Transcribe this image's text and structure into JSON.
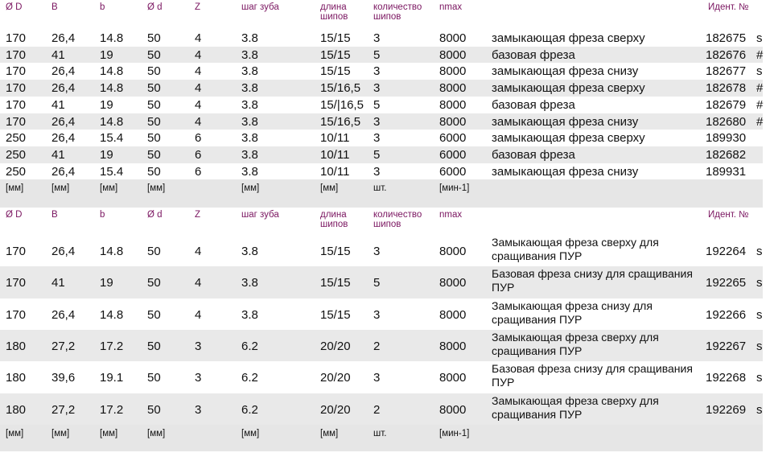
{
  "table1": {
    "headers": {
      "d_outer": "Ø D",
      "B": "B",
      "b": "b",
      "d_bore": "Ø d",
      "Z": "Z",
      "pitch": "шаг зуба",
      "length_l1": "длина",
      "length_l2": "шипов",
      "count_l1": "количество",
      "count_l2": "шипов",
      "nmax": "nmax",
      "ident": "Идент. №"
    },
    "rows": [
      {
        "D": "170",
        "B": "26,4",
        "b": "14.8",
        "d": "50",
        "Z": "4",
        "pitch": "3.8",
        "length": "15/15",
        "count": "3",
        "nmax": "8000",
        "desc": "замыкающая фреза сверху",
        "id": "182675",
        "mark": "s"
      },
      {
        "D": "170",
        "B": "41",
        "b": "19",
        "d": "50",
        "Z": "4",
        "pitch": "3.8",
        "length": "15/15",
        "count": "5",
        "nmax": "8000",
        "desc": "базовая фреза",
        "id": "182676",
        "mark": "#"
      },
      {
        "D": "170",
        "B": "26,4",
        "b": "14.8",
        "d": "50",
        "Z": "4",
        "pitch": "3.8",
        "length": "15/15",
        "count": "3",
        "nmax": "8000",
        "desc": "замыкающая фреза снизу",
        "id": "182677",
        "mark": "s"
      },
      {
        "D": "170",
        "B": "26,4",
        "b": "14.8",
        "d": "50",
        "Z": "4",
        "pitch": "3.8",
        "length": "15/16,5",
        "count": "3",
        "nmax": "8000",
        "desc": "замыкающая фреза сверху",
        "id": "182678",
        "mark": "#"
      },
      {
        "D": "170",
        "B": "41",
        "b": "19",
        "d": "50",
        "Z": "4",
        "pitch": "3.8",
        "length": "15/|16,5",
        "count": "5",
        "nmax": "8000",
        "desc": "базовая фреза",
        "id": "182679",
        "mark": "#"
      },
      {
        "D": "170",
        "B": "26,4",
        "b": "14.8",
        "d": "50",
        "Z": "4",
        "pitch": "3.8",
        "length": "15/16,5",
        "count": "3",
        "nmax": "8000",
        "desc": "замыкающая фреза снизу",
        "id": "182680",
        "mark": "#"
      },
      {
        "D": "250",
        "B": "26,4",
        "b": "15.4",
        "d": "50",
        "Z": "6",
        "pitch": "3.8",
        "length": "10/11",
        "count": "3",
        "nmax": "6000",
        "desc": "замыкающая фреза сверху",
        "id": "189930",
        "mark": ""
      },
      {
        "D": "250",
        "B": "41",
        "b": "19",
        "d": "50",
        "Z": "6",
        "pitch": "3.8",
        "length": "10/11",
        "count": "5",
        "nmax": "6000",
        "desc": "базовая фреза",
        "id": "182682",
        "mark": ""
      },
      {
        "D": "250",
        "B": "26,4",
        "b": "15.4",
        "d": "50",
        "Z": "6",
        "pitch": "3.8",
        "length": "10/11",
        "count": "3",
        "nmax": "6000",
        "desc": "замыкающая фреза снизу",
        "id": "189931",
        "mark": ""
      }
    ],
    "units": {
      "D": "[мм]",
      "B": "[мм]",
      "b": "[мм]",
      "d": "[мм]",
      "pitch": "[мм]",
      "length": "[мм]",
      "count": "шт.",
      "nmax": "[мин-1]"
    }
  },
  "table2": {
    "headers": {
      "d_outer": "Ø D",
      "B": "B",
      "b": "b",
      "d_bore": "Ø d",
      "Z": "Z",
      "pitch": "шаг зуба",
      "length_l1": "длина",
      "length_l2": "шипов",
      "count_l1": "количество",
      "count_l2": "шипов",
      "nmax": "nmax",
      "ident": "Идент. №"
    },
    "rows": [
      {
        "D": "170",
        "B": "26,4",
        "b": "14.8",
        "d": "50",
        "Z": "4",
        "pitch": "3.8",
        "length": "15/15",
        "count": "3",
        "nmax": "8000",
        "desc": "Замыкающая фреза сверху для сращивания ПУР",
        "id": "192264",
        "mark": "s"
      },
      {
        "D": "170",
        "B": "41",
        "b": "19",
        "d": "50",
        "Z": "4",
        "pitch": "3.8",
        "length": "15/15",
        "count": "5",
        "nmax": "8000",
        "desc": "Базовая фреза снизу для сращивания ПУР",
        "id": "192265",
        "mark": "s"
      },
      {
        "D": "170",
        "B": "26,4",
        "b": "14.8",
        "d": "50",
        "Z": "4",
        "pitch": "3.8",
        "length": "15/15",
        "count": "3",
        "nmax": "8000",
        "desc": "Замыкающая фреза снизу для сращивания ПУР",
        "id": "192266",
        "mark": "s"
      },
      {
        "D": "180",
        "B": "27,2",
        "b": "17.2",
        "d": "50",
        "Z": "3",
        "pitch": "6.2",
        "length": "20/20",
        "count": "2",
        "nmax": "8000",
        "desc": "Замыкающая фреза сверху для сращивания ПУР",
        "id": "192267",
        "mark": "s"
      },
      {
        "D": "180",
        "B": "39,6",
        "b": "19.1",
        "d": "50",
        "Z": "3",
        "pitch": "6.2",
        "length": "20/20",
        "count": "3",
        "nmax": "8000",
        "desc": "Базовая фреза снизу для сращивания ПУР",
        "id": "192268",
        "mark": "s"
      },
      {
        "D": "180",
        "B": "27,2",
        "b": "17.2",
        "d": "50",
        "Z": "3",
        "pitch": "6.2",
        "length": "20/20",
        "count": "2",
        "nmax": "8000",
        "desc": "Замыкающая фреза сверху для сращивания ПУР",
        "id": "192269",
        "mark": "s"
      }
    ],
    "units": {
      "D": "[мм]",
      "B": "[мм]",
      "b": "[мм]",
      "d": "[мм]",
      "pitch": "[мм]",
      "length": "[мм]",
      "count": "шт.",
      "nmax": "[мин-1]"
    }
  }
}
